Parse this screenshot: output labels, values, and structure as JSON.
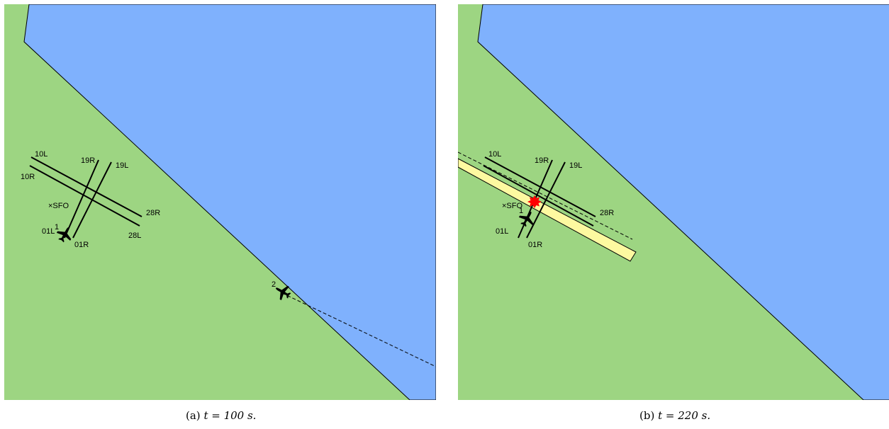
{
  "colors": {
    "land": "#9dd582",
    "water": "#7fb1fd",
    "hazard": "#fdf9a0",
    "collision": "#ff0000",
    "line": "#000000"
  },
  "runway_labels": [
    "10L",
    "10R",
    "28R",
    "28L",
    "19R",
    "19L",
    "01L",
    "01R"
  ],
  "airport_label": "×SFO",
  "panels": [
    {
      "id": "a",
      "caption_prefix": "(a)",
      "caption_math": "t = 100 s.",
      "aircraft": [
        {
          "label": "1",
          "icon": "airplane-icon"
        },
        {
          "label": "2",
          "icon": "airplane-icon"
        }
      ],
      "has_hazard": false,
      "has_collision": false
    },
    {
      "id": "b",
      "caption_prefix": "(b)",
      "caption_math": "t = 220 s.",
      "aircraft": [
        {
          "label": "1",
          "icon": "airplane-icon"
        }
      ],
      "has_hazard": true,
      "has_collision": true
    }
  ]
}
